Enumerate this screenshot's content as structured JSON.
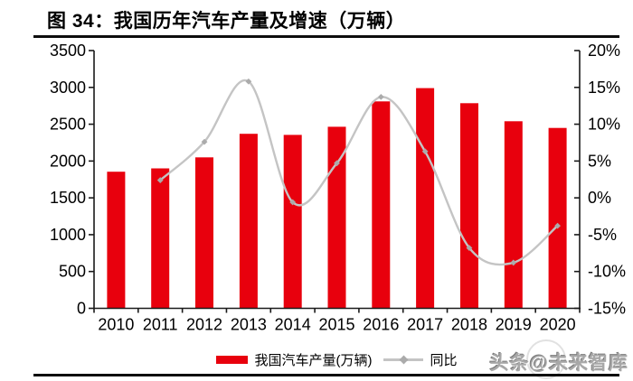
{
  "figure": {
    "title": "图 34：我国历年汽车产量及增速（万辆）",
    "watermark": "头条@未来智库"
  },
  "legend": {
    "bar_label": "我国汽车产量(万辆)",
    "line_label": "同比"
  },
  "colors": {
    "bar": "#e8000d",
    "line": "#c4c4c4",
    "marker": "#ababab",
    "axis": "#1a1a1a",
    "text": "#000000",
    "rule": "#0d0d0d",
    "watermark": "#a8a8a8"
  },
  "chart_data": {
    "type": "bar+line combo",
    "title": "我国历年汽车产量及增速（万辆）",
    "categories": [
      "2010",
      "2011",
      "2012",
      "2013",
      "2014",
      "2015",
      "2016",
      "2017",
      "2018",
      "2019",
      "2020"
    ],
    "series": [
      {
        "name": "我国汽车产量(万辆)",
        "type": "bar",
        "axis": "left",
        "values": [
          1855,
          1900,
          2050,
          2370,
          2355,
          2465,
          2810,
          2990,
          2785,
          2540,
          2450
        ]
      },
      {
        "name": "同比",
        "type": "line",
        "axis": "right",
        "values_pct": [
          null,
          2.4,
          7.6,
          15.8,
          -0.6,
          4.7,
          13.7,
          6.3,
          -6.8,
          -8.8,
          -3.8
        ]
      }
    ],
    "left_axis": {
      "min": 0,
      "max": 3500,
      "tick_step": 500,
      "tick_labels_top_to_bottom": [
        "3500",
        "3000",
        "2500",
        "2000",
        "1500",
        "1000",
        "500",
        "0"
      ]
    },
    "right_axis": {
      "min": -15,
      "max": 20,
      "tick_step": 5,
      "tick_labels_top_to_bottom": [
        "20%",
        "15%",
        "10%",
        "5%",
        "0%",
        "-5%",
        "-10%",
        "-15%"
      ]
    },
    "grid": false,
    "legend_position": "bottom-center"
  }
}
